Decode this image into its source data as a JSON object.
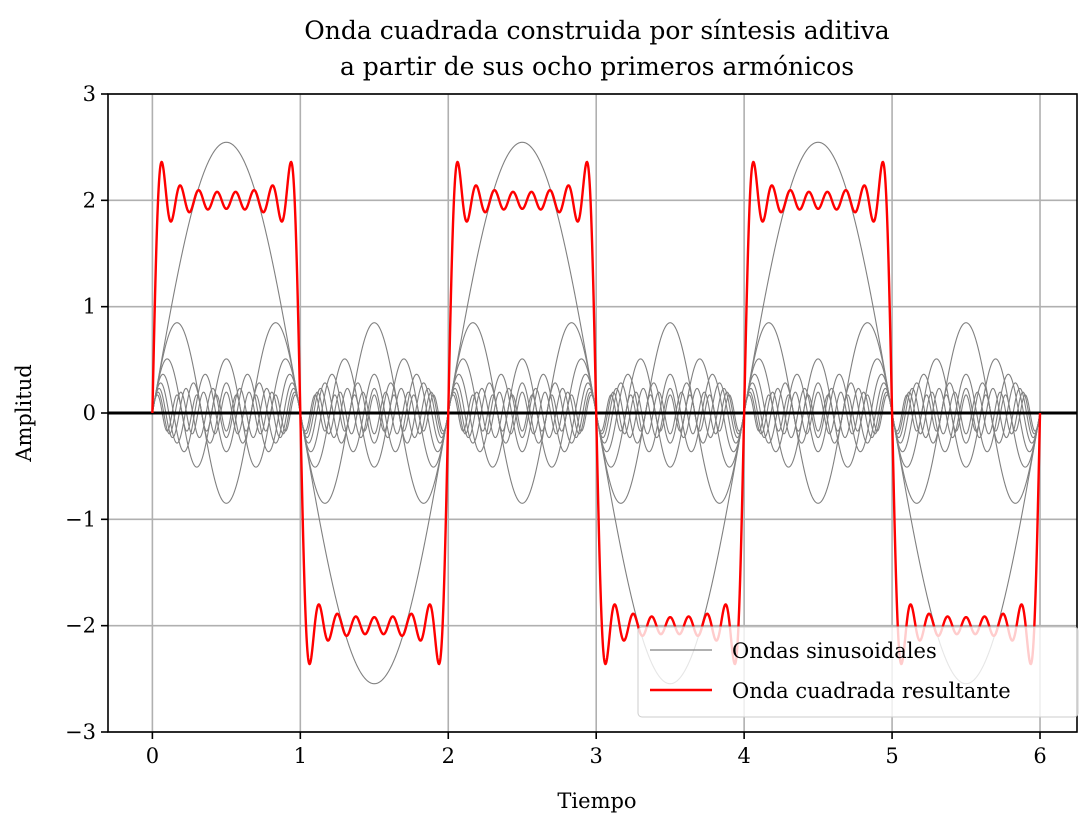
{
  "chart_data": {
    "type": "line",
    "title": [
      "Onda cuadrada construida por síntesis aditiva",
      "a partir de sus ocho primeros armónicos"
    ],
    "xlabel": "Tiempo",
    "ylabel": "Amplitud",
    "xlim": [
      -0.3,
      6.25
    ],
    "ylim": [
      -3,
      3
    ],
    "xticks": [
      0,
      1,
      2,
      3,
      4,
      5,
      6
    ],
    "yticks": [
      -3,
      -2,
      -1,
      0,
      1,
      2,
      3
    ],
    "ytick_labels": [
      "−3",
      "−2",
      "−1",
      "0",
      "1",
      "2",
      "3"
    ],
    "grid": true,
    "legend_position": "lower-right",
    "signal": {
      "period": 2,
      "t_start": 0,
      "t_end": 6,
      "harmonics": [
        {
          "k": 1,
          "amplitude": 2.546
        },
        {
          "k": 3,
          "amplitude": 0.849
        },
        {
          "k": 5,
          "amplitude": 0.509
        },
        {
          "k": 7,
          "amplitude": 0.364
        },
        {
          "k": 9,
          "amplitude": 0.283
        },
        {
          "k": 11,
          "amplitude": 0.231
        },
        {
          "k": 13,
          "amplitude": 0.196
        },
        {
          "k": 15,
          "amplitude": 0.17
        }
      ]
    },
    "series": [
      {
        "name": "Ondas sinusoidales",
        "color": "#808080"
      },
      {
        "name": "Onda cuadrada resultante",
        "color": "#ff0000"
      }
    ],
    "zero_line_color": "#000000"
  }
}
